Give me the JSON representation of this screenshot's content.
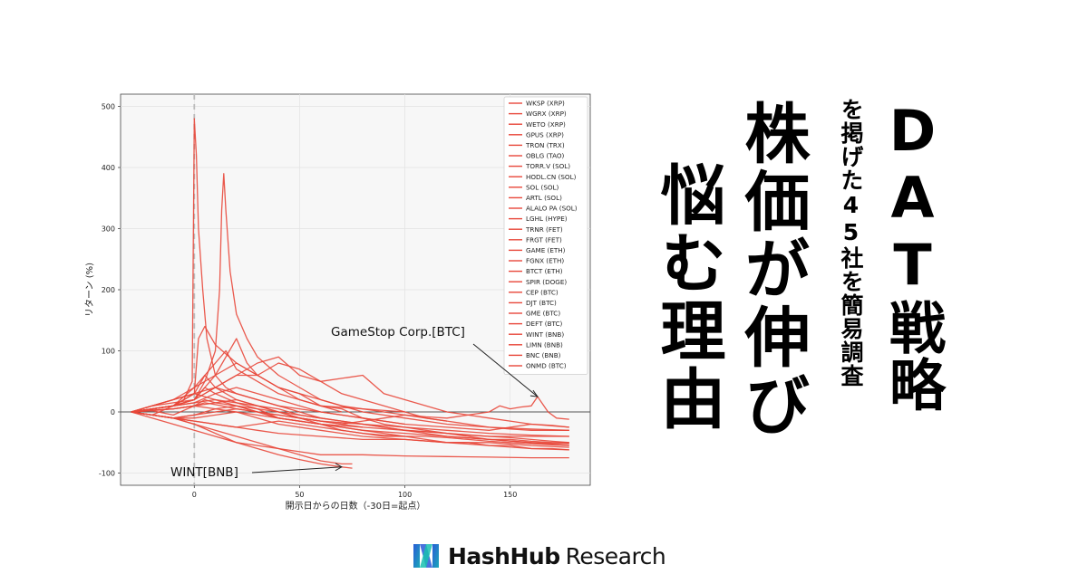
{
  "title": {
    "line1": "DAT戦略",
    "subtitle": "を掲げた45社を簡易調査",
    "line2": "株価が伸び",
    "line3": "悩む理由"
  },
  "brand": {
    "name": "HashHub",
    "suffix": "Research"
  },
  "colors": {
    "line": "#e8473a",
    "zero_line": "#555555",
    "dashed": "#bbbbbb",
    "plot_bg": "#f7f7f7"
  },
  "chart_data": {
    "type": "line",
    "xlabel": "開示日からの日数（-30日=起点）",
    "ylabel": "リターン (%)",
    "xlim": [
      -35,
      188
    ],
    "ylim": [
      -120,
      520
    ],
    "xticks": [
      0,
      50,
      100,
      150
    ],
    "yticks": [
      -100,
      0,
      100,
      200,
      300,
      400,
      500
    ],
    "vline_x": 0,
    "hline_y": 0,
    "grid": true,
    "legend_position": "top-right",
    "annotations": [
      {
        "text": "GameStop Corp.[BTC]",
        "target": [
          163,
          25
        ]
      },
      {
        "text": "WINT[BNB]",
        "target": [
          70,
          -90
        ]
      }
    ],
    "series": [
      {
        "name": "WKSP (XRP)",
        "x": [
          -30,
          -20,
          -10,
          0,
          5,
          10,
          20,
          30,
          40
        ],
        "y": [
          0,
          -5,
          10,
          20,
          40,
          30,
          15,
          5,
          -10
        ]
      },
      {
        "name": "WGRX (XRP)",
        "x": [
          -30,
          -20,
          -10,
          0,
          5,
          10,
          20,
          30,
          40,
          50,
          60
        ],
        "y": [
          0,
          5,
          10,
          30,
          60,
          40,
          20,
          10,
          5,
          -5,
          -10
        ]
      },
      {
        "name": "WETO (XRP)",
        "x": [
          -30,
          -20,
          -10,
          0,
          5,
          10,
          20,
          30,
          40,
          50,
          60,
          70,
          80
        ],
        "y": [
          0,
          2,
          -5,
          10,
          20,
          15,
          10,
          5,
          0,
          -10,
          -15,
          -20,
          -25
        ]
      },
      {
        "name": "GPUS (XRP)",
        "x": [
          -30,
          -20,
          -10,
          0,
          2,
          5,
          10,
          20,
          30,
          40,
          50,
          60,
          70,
          80,
          90,
          100,
          110,
          120,
          130,
          140,
          150,
          160,
          170,
          178
        ],
        "y": [
          0,
          5,
          10,
          30,
          120,
          140,
          110,
          80,
          60,
          40,
          30,
          10,
          5,
          -10,
          -20,
          -25,
          -30,
          -35,
          -40,
          -45,
          -45,
          -48,
          -50,
          -50
        ]
      },
      {
        "name": "TRON (TRX)",
        "x": [
          -30,
          -20,
          -10,
          -5,
          -1,
          0,
          1,
          2,
          4,
          6,
          10,
          15,
          20,
          30,
          40,
          50,
          60,
          80,
          100,
          120,
          140,
          160,
          178
        ],
        "y": [
          0,
          5,
          10,
          20,
          50,
          480,
          420,
          300,
          200,
          120,
          60,
          40,
          30,
          20,
          10,
          5,
          0,
          -10,
          -20,
          -25,
          -30,
          -20,
          -25
        ]
      },
      {
        "name": "OBLG (TAO)",
        "x": [
          -30,
          -20,
          -10,
          0,
          5,
          10,
          20,
          30,
          40,
          60,
          80,
          100,
          120,
          140,
          160,
          178
        ],
        "y": [
          0,
          3,
          5,
          10,
          15,
          12,
          5,
          0,
          -5,
          -15,
          -20,
          -25,
          -30,
          -35,
          -38,
          -40
        ]
      },
      {
        "name": "TORR.V (SOL)",
        "x": [
          -30,
          -20,
          -10,
          0,
          5,
          10,
          15,
          20,
          30,
          40,
          50,
          60,
          80,
          100
        ],
        "y": [
          0,
          5,
          10,
          40,
          60,
          80,
          100,
          70,
          50,
          30,
          20,
          10,
          5,
          0
        ]
      },
      {
        "name": "HODL.CN (SOL)",
        "x": [
          -30,
          -20,
          -10,
          0,
          5,
          10,
          15,
          20,
          25,
          30,
          40,
          50,
          60,
          70,
          80,
          90,
          100,
          110,
          120
        ],
        "y": [
          0,
          5,
          10,
          20,
          40,
          60,
          90,
          120,
          80,
          60,
          40,
          30,
          20,
          10,
          5,
          0,
          -5,
          -10,
          -15
        ]
      },
      {
        "name": "SOL (SOL)",
        "x": [
          -30,
          -20,
          -10,
          0,
          5,
          10,
          20,
          30,
          40,
          60,
          80,
          100,
          120,
          140,
          160,
          178
        ],
        "y": [
          0,
          -5,
          -10,
          -5,
          0,
          5,
          10,
          0,
          -10,
          -20,
          -25,
          -30,
          -35,
          -40,
          -40,
          -40
        ]
      },
      {
        "name": "ARTL (SOL)",
        "x": [
          -30,
          -20,
          -10,
          0,
          10,
          20,
          30,
          40,
          50,
          60,
          70
        ],
        "y": [
          0,
          10,
          20,
          40,
          60,
          80,
          60,
          40,
          20,
          10,
          0
        ]
      },
      {
        "name": "ALALO PA (SOL)",
        "x": [
          -30,
          -20,
          -10,
          0,
          10,
          20,
          30,
          40,
          60,
          80,
          100,
          120,
          140,
          160,
          178
        ],
        "y": [
          0,
          -5,
          -10,
          -15,
          -20,
          -25,
          -30,
          -35,
          -40,
          -45,
          -45,
          -50,
          -50,
          -55,
          -58
        ]
      },
      {
        "name": "LGHL (HYPE)",
        "x": [
          -30,
          -20,
          -10,
          0,
          10,
          20,
          30,
          40,
          60,
          80,
          100,
          120,
          140,
          160,
          178
        ],
        "y": [
          0,
          2,
          5,
          10,
          5,
          0,
          -10,
          -20,
          -30,
          -40,
          -45,
          -50,
          -55,
          -60,
          -62
        ]
      },
      {
        "name": "TRNR (FET)",
        "x": [
          -30,
          -20,
          -10,
          0,
          10,
          20,
          30,
          40,
          50,
          60,
          70,
          75
        ],
        "y": [
          0,
          -5,
          -10,
          -20,
          -30,
          -40,
          -50,
          -60,
          -70,
          -80,
          -85,
          -85
        ]
      },
      {
        "name": "FRGT (FET)",
        "x": [
          -30,
          -20,
          -10,
          0,
          10,
          20,
          30,
          40,
          50,
          60,
          70,
          80,
          90,
          100
        ],
        "y": [
          0,
          3,
          5,
          10,
          15,
          20,
          10,
          0,
          -10,
          -20,
          -30,
          -35,
          -40,
          -40
        ]
      },
      {
        "name": "GAME (ETH)",
        "x": [
          -30,
          -20,
          -10,
          0,
          10,
          20,
          30,
          40,
          50,
          60,
          70,
          80,
          90,
          100,
          110,
          120,
          130,
          140,
          150,
          160,
          170,
          178
        ],
        "y": [
          0,
          5,
          10,
          20,
          40,
          60,
          60,
          80,
          70,
          50,
          30,
          20,
          10,
          0,
          -10,
          -15,
          -20,
          -25,
          -28,
          -30,
          -30,
          -30
        ]
      },
      {
        "name": "FGNX (ETH)",
        "x": [
          -30,
          -20,
          -10,
          0,
          10,
          20,
          30,
          40,
          50,
          60,
          70,
          80,
          90,
          100,
          110,
          120,
          130,
          140,
          150,
          160,
          170,
          178
        ],
        "y": [
          0,
          -5,
          -10,
          -10,
          -5,
          0,
          -5,
          -10,
          -15,
          -20,
          -25,
          -30,
          -35,
          -40,
          -45,
          -50,
          -50,
          -55,
          -55,
          -60,
          -60,
          -62
        ]
      },
      {
        "name": "BTCT (ETH)",
        "x": [
          -30,
          -20,
          -10,
          0,
          10,
          20,
          30,
          40,
          50,
          60,
          80,
          100,
          120,
          140,
          160,
          178
        ],
        "y": [
          0,
          10,
          20,
          30,
          40,
          30,
          20,
          10,
          0,
          -10,
          -20,
          -30,
          -40,
          -45,
          -50,
          -55
        ]
      },
      {
        "name": "SPIR (DOGE)",
        "x": [
          -30,
          -20,
          -10,
          0,
          10,
          20,
          30,
          40,
          50,
          60,
          80,
          100,
          120,
          140,
          160,
          178
        ],
        "y": [
          0,
          -10,
          -20,
          -30,
          -40,
          -50,
          -55,
          -60,
          -65,
          -70,
          -70,
          -72,
          -73,
          -74,
          -75,
          -75
        ]
      },
      {
        "name": "CEP (BTC)",
        "x": [
          -30,
          -20,
          -10,
          0,
          10,
          20,
          30,
          40,
          50,
          60,
          70,
          80,
          90,
          100,
          110,
          120,
          130,
          140,
          150,
          160,
          170,
          178
        ],
        "y": [
          0,
          5,
          10,
          15,
          20,
          15,
          10,
          0,
          -5,
          -10,
          -15,
          -20,
          -25,
          -30,
          -32,
          -35,
          -38,
          -40,
          -42,
          -45,
          -48,
          -50
        ]
      },
      {
        "name": "DJT (BTC)",
        "x": [
          -30,
          -20,
          -10,
          0,
          10,
          20,
          30,
          40,
          50,
          60,
          70,
          80,
          90,
          100,
          110,
          120,
          130,
          140,
          150,
          160,
          170,
          178
        ],
        "y": [
          0,
          -5,
          -10,
          -15,
          -20,
          -25,
          -20,
          -15,
          -20,
          -25,
          -30,
          -35,
          -38,
          -40,
          -40,
          -42,
          -45,
          -48,
          -50,
          -52,
          -54,
          -55
        ]
      },
      {
        "name": "GME (BTC)",
        "x": [
          -30,
          -20,
          -10,
          0,
          10,
          20,
          30,
          40,
          50,
          60,
          70,
          80,
          90,
          100,
          110,
          120,
          130,
          140,
          145,
          150,
          155,
          160,
          163,
          168,
          172,
          178
        ],
        "y": [
          0,
          -5,
          -10,
          -5,
          0,
          5,
          0,
          -5,
          -10,
          -15,
          -20,
          -15,
          -10,
          -5,
          -8,
          -10,
          -5,
          0,
          10,
          5,
          8,
          10,
          25,
          0,
          -10,
          -12
        ]
      },
      {
        "name": "DEFT (BTC)",
        "x": [
          -30,
          -20,
          -10,
          0,
          10,
          20,
          30,
          40,
          60,
          80,
          100,
          120,
          140,
          160,
          178
        ],
        "y": [
          0,
          10,
          20,
          30,
          20,
          10,
          0,
          -10,
          -20,
          -30,
          -35,
          -40,
          -45,
          -50,
          -52
        ]
      },
      {
        "name": "WINT (BNB)",
        "x": [
          -30,
          -20,
          -10,
          0,
          10,
          20,
          30,
          40,
          50,
          60,
          70,
          75
        ],
        "y": [
          0,
          -5,
          -10,
          -20,
          -35,
          -50,
          -60,
          -70,
          -78,
          -85,
          -90,
          -92
        ]
      },
      {
        "name": "LIMN (BNB)",
        "x": [
          -30,
          -20,
          -10,
          0,
          10,
          20,
          30,
          40,
          50,
          60,
          70,
          80,
          90,
          100
        ],
        "y": [
          0,
          5,
          10,
          15,
          30,
          40,
          30,
          20,
          10,
          0,
          -5,
          -10,
          -15,
          -20
        ]
      },
      {
        "name": "BNC (BNB)",
        "x": [
          -30,
          -20,
          -10,
          0,
          5,
          10,
          12,
          13,
          14,
          15,
          17,
          20,
          25,
          30,
          40,
          50,
          60,
          80,
          100,
          120,
          140,
          160,
          178
        ],
        "y": [
          0,
          5,
          10,
          20,
          50,
          100,
          200,
          330,
          390,
          330,
          230,
          160,
          120,
          90,
          60,
          40,
          20,
          0,
          -10,
          -20,
          -25,
          -28,
          -30
        ]
      },
      {
        "name": "ONMD (BTC)",
        "x": [
          -30,
          -20,
          -10,
          0,
          10,
          20,
          30,
          40,
          50,
          60,
          70,
          80,
          90,
          100,
          110,
          120,
          130,
          140,
          150,
          160,
          170,
          178
        ],
        "y": [
          0,
          10,
          15,
          20,
          40,
          60,
          80,
          90,
          60,
          50,
          55,
          60,
          30,
          20,
          10,
          0,
          -5,
          -10,
          -15,
          -20,
          -22,
          -25
        ]
      }
    ]
  }
}
